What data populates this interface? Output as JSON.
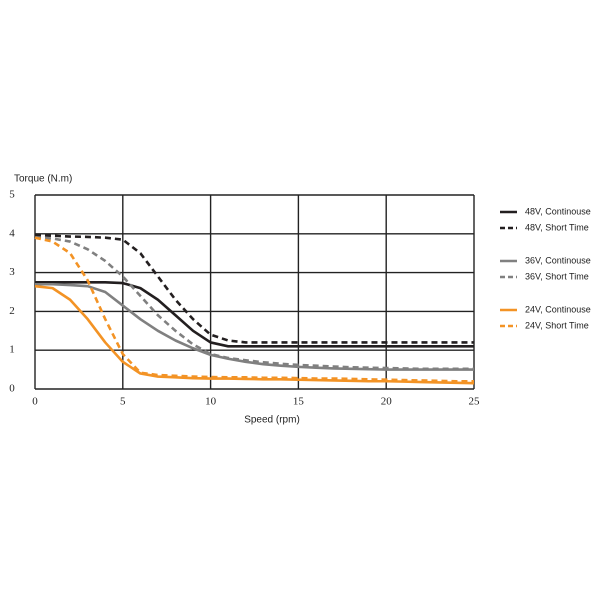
{
  "chart_data": {
    "type": "line",
    "y_label": "Torque (N.m)",
    "x_label": "Speed (rpm)",
    "x": [
      0,
      1,
      2,
      3,
      4,
      5,
      6,
      7,
      8,
      9,
      10,
      11,
      12,
      13,
      14,
      15,
      16,
      17,
      18,
      19,
      20,
      21,
      22,
      23,
      24,
      25
    ],
    "xlim": [
      0,
      25
    ],
    "xticks": [
      0,
      5,
      10,
      15,
      20,
      25
    ],
    "ylim": [
      0,
      5
    ],
    "yticks": [
      0,
      1,
      2,
      3,
      4,
      5
    ],
    "grid": true,
    "legend": "right",
    "series": [
      {
        "name": "48V, Continouse",
        "color": "#231f20",
        "dash": false,
        "values": [
          2.75,
          2.75,
          2.75,
          2.75,
          2.75,
          2.73,
          2.6,
          2.3,
          1.9,
          1.5,
          1.2,
          1.1,
          1.1,
          1.1,
          1.1,
          1.1,
          1.1,
          1.1,
          1.1,
          1.1,
          1.1,
          1.1,
          1.1,
          1.1,
          1.1,
          1.1
        ]
      },
      {
        "name": "48V, Short  Time",
        "color": "#231f20",
        "dash": true,
        "values": [
          3.97,
          3.95,
          3.93,
          3.92,
          3.9,
          3.85,
          3.5,
          2.9,
          2.3,
          1.8,
          1.4,
          1.25,
          1.2,
          1.2,
          1.2,
          1.2,
          1.2,
          1.2,
          1.2,
          1.2,
          1.2,
          1.2,
          1.2,
          1.2,
          1.2,
          1.2
        ]
      },
      {
        "name": "36V, Continouse",
        "color": "#808080",
        "dash": false,
        "values": [
          2.7,
          2.7,
          2.68,
          2.65,
          2.5,
          2.15,
          1.8,
          1.5,
          1.25,
          1.05,
          0.88,
          0.78,
          0.7,
          0.64,
          0.6,
          0.57,
          0.55,
          0.53,
          0.52,
          0.51,
          0.5,
          0.5,
          0.5,
          0.5,
          0.5,
          0.5
        ]
      },
      {
        "name": "36V, Short  Time",
        "color": "#808080",
        "dash": true,
        "values": [
          3.9,
          3.88,
          3.8,
          3.6,
          3.3,
          2.9,
          2.4,
          1.9,
          1.5,
          1.15,
          0.9,
          0.8,
          0.74,
          0.69,
          0.65,
          0.62,
          0.6,
          0.58,
          0.56,
          0.55,
          0.54,
          0.53,
          0.52,
          0.52,
          0.52,
          0.52
        ]
      },
      {
        "name": "24V, Continouse",
        "color": "#f39325",
        "dash": false,
        "values": [
          2.65,
          2.6,
          2.3,
          1.8,
          1.2,
          0.7,
          0.4,
          0.32,
          0.3,
          0.28,
          0.27,
          0.27,
          0.26,
          0.25,
          0.25,
          0.24,
          0.23,
          0.22,
          0.21,
          0.2,
          0.2,
          0.19,
          0.18,
          0.17,
          0.16,
          0.15
        ]
      },
      {
        "name": "24V, Short  Time",
        "color": "#f39325",
        "dash": true,
        "values": [
          3.9,
          3.8,
          3.5,
          2.8,
          1.8,
          0.9,
          0.42,
          0.36,
          0.34,
          0.32,
          0.31,
          0.3,
          0.3,
          0.29,
          0.29,
          0.28,
          0.27,
          0.27,
          0.26,
          0.25,
          0.24,
          0.23,
          0.22,
          0.21,
          0.2,
          0.2
        ]
      }
    ]
  }
}
